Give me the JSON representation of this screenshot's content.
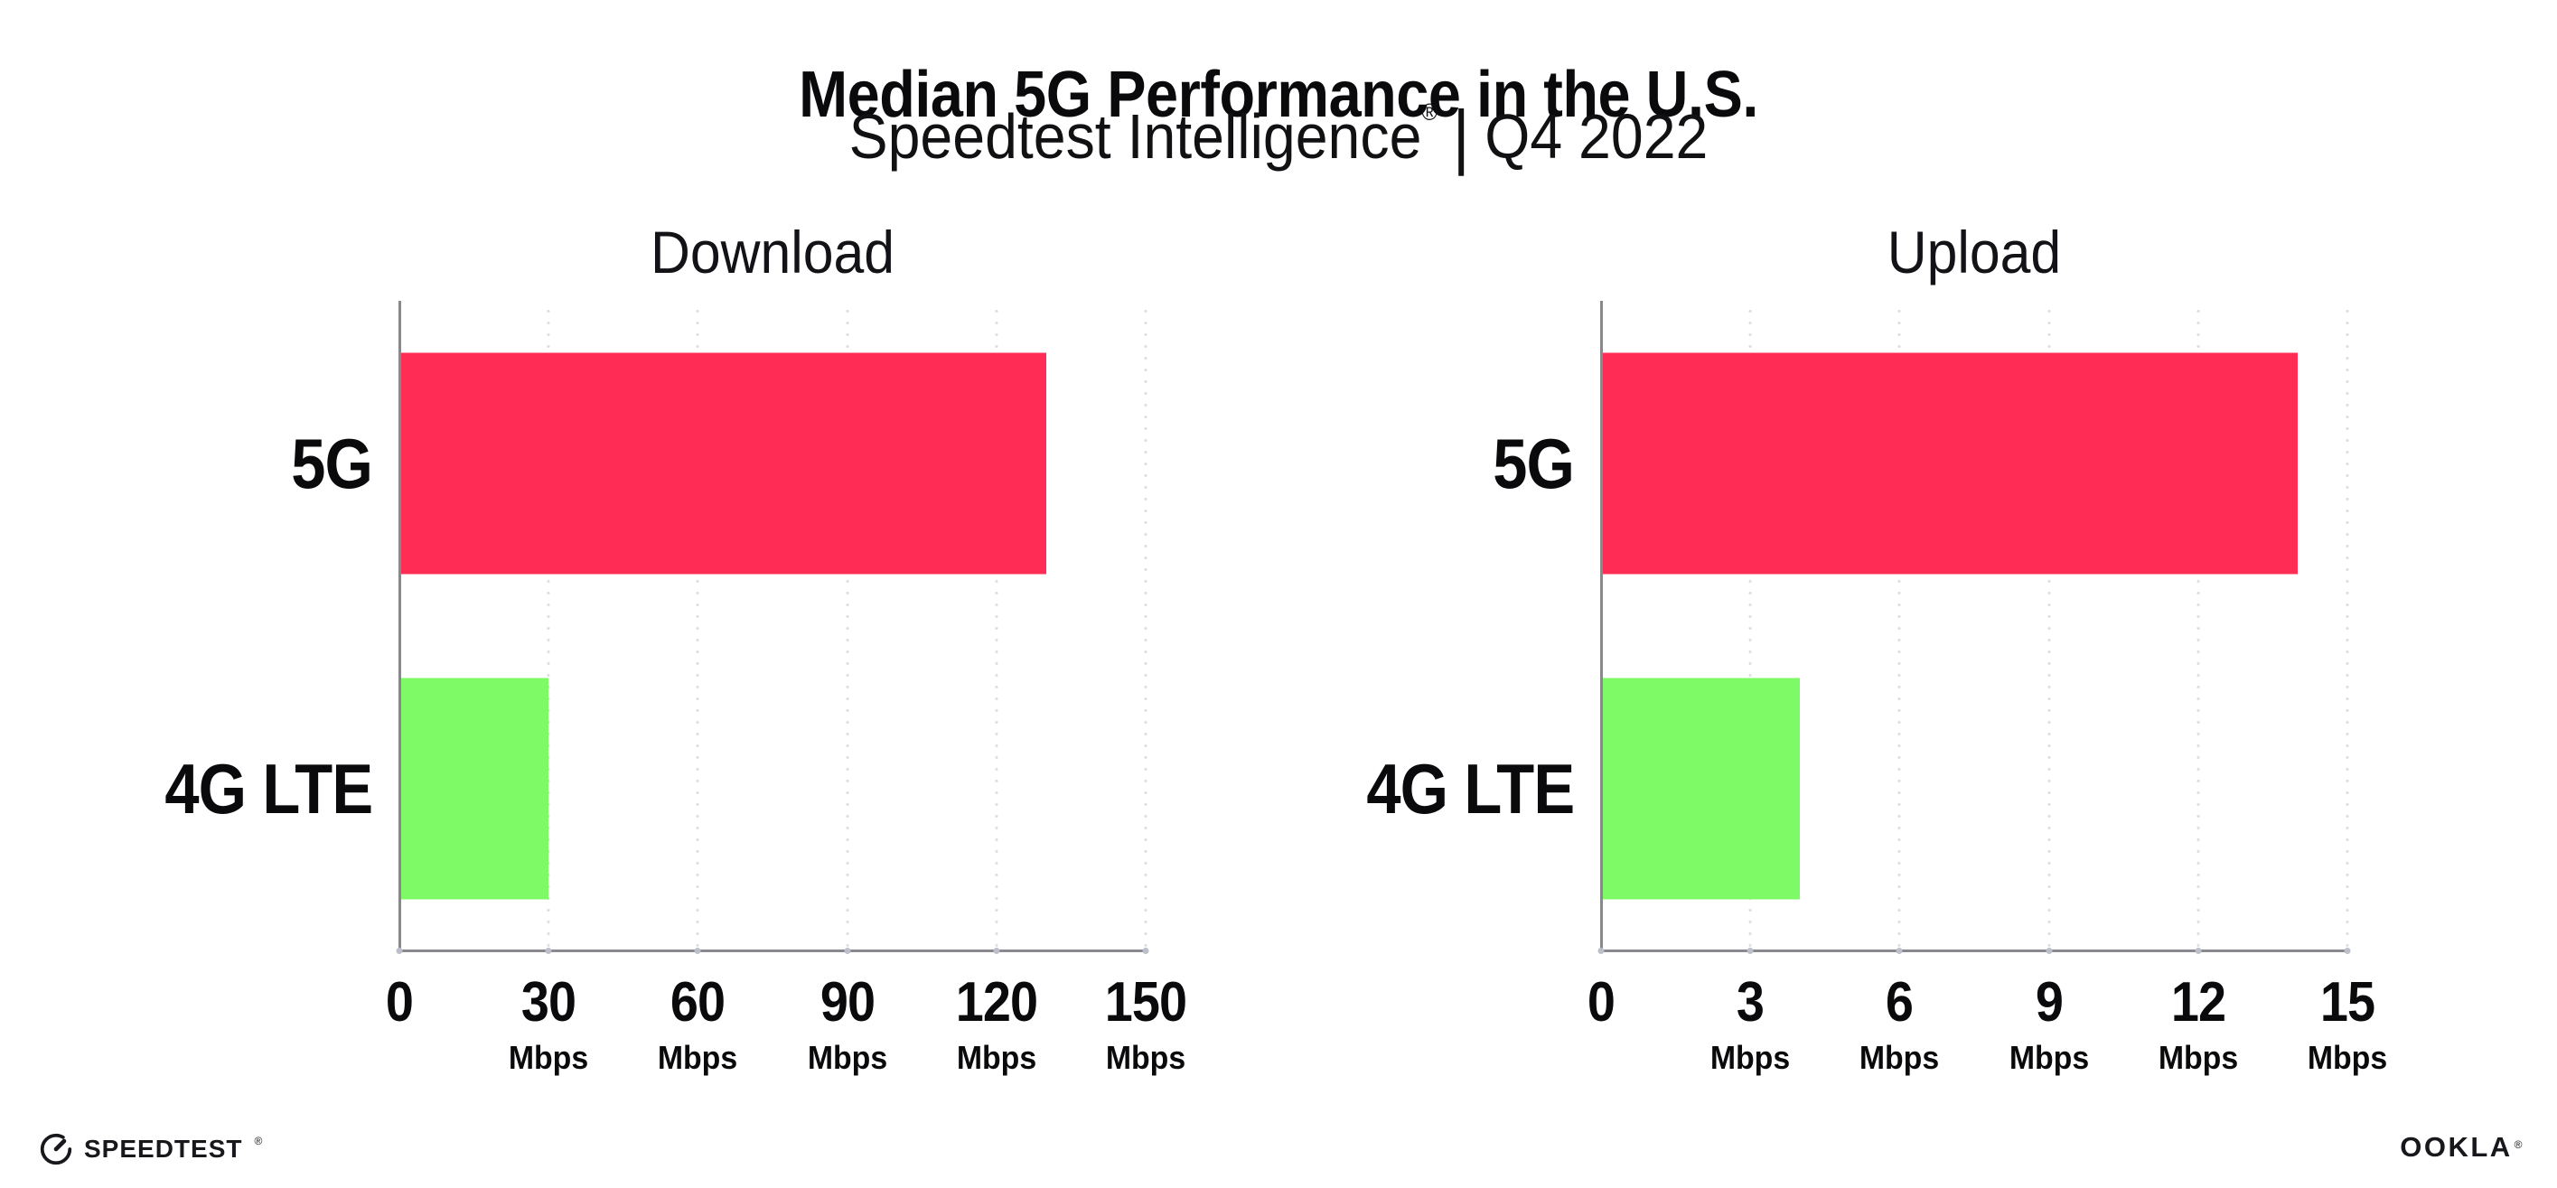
{
  "header": {
    "title": "Median 5G Performance in the U.S.",
    "subtitle_brand": "Speedtest Intelligence",
    "subtitle_reg_mark": "®",
    "subtitle_separator": "|",
    "subtitle_period": "Q4 2022"
  },
  "chart_data": [
    {
      "type": "bar",
      "orientation": "horizontal",
      "title": "Download",
      "categories": [
        "5G",
        "4G LTE"
      ],
      "values": [
        130,
        30
      ],
      "unit": "Mbps",
      "xlim": [
        0,
        150
      ],
      "xticks": [
        0,
        30,
        60,
        90,
        120,
        150
      ],
      "bar_colors": [
        "#ff2d55",
        "#7dfa66"
      ],
      "grid": "vertical-dotted",
      "legend": "none"
    },
    {
      "type": "bar",
      "orientation": "horizontal",
      "title": "Upload",
      "categories": [
        "5G",
        "4G LTE"
      ],
      "values": [
        14,
        4
      ],
      "unit": "Mbps",
      "xlim": [
        0,
        15
      ],
      "xticks": [
        0,
        3,
        6,
        9,
        12,
        15
      ],
      "bar_colors": [
        "#ff2d55",
        "#7dfa66"
      ],
      "grid": "vertical-dotted",
      "legend": "none"
    }
  ],
  "footer": {
    "speedtest_wordmark": "SPEEDTEST",
    "speedtest_mark": "®",
    "ookla_wordmark": "OOKLA",
    "ookla_mark": "®"
  },
  "colors": {
    "bar_5g": "#ff2d55",
    "bar_4g_lte": "#7dfa66",
    "axis_line": "#88888e",
    "gridline_dot": "#dcdee8",
    "tick_dot": "#bcbfca",
    "text": "#0a0a0c",
    "background": "#ffffff"
  }
}
